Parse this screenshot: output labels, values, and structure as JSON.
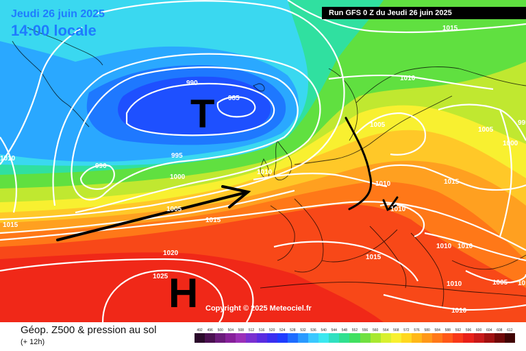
{
  "header": {
    "date_text": "Jeudi 26 juin 2025",
    "time_text": "14:00 locale",
    "run_text": "Run GFS 0 Z du Jeudi 26 juin 2025"
  },
  "map": {
    "low_symbol": "T",
    "high_symbol": "H",
    "copyright": "Copyright © 2025 Meteociel.fr",
    "isobar_labels": {
      "i990_a": "990",
      "i985": "985",
      "i990_b": "990",
      "i995": "995",
      "i1000": "1000",
      "i1005_w": "1005",
      "i1010_w": "1010",
      "i1015_w": "1015",
      "i1020": "1020",
      "i1025": "1025",
      "i1010_ne": "1010",
      "i1015_ne": "1015",
      "i1005_c": "1005",
      "i1005_e": "1005",
      "i1000_e": "1000",
      "i995_e": "995",
      "i1010_c": "1010",
      "i1010_d": "1010",
      "i1015_c": "1015",
      "i1010_gr": "1010",
      "i1015_s": "1015",
      "i1010_se1": "1010",
      "i1010_se2": "1010",
      "i1010_se3": "1010",
      "i1005_se": "1005",
      "i1010_sse": "1010",
      "i1015_ea": "1015",
      "i1010_ee": "1010"
    }
  },
  "footer": {
    "title": "Géop. Z500 & pression au sol",
    "step": "(+ 12h)"
  },
  "legend": [
    {
      "label": "492",
      "color": "#2a0a2a"
    },
    {
      "label": "496",
      "color": "#4a1050"
    },
    {
      "label": "500",
      "color": "#6a1a7a"
    },
    {
      "label": "504",
      "color": "#86209a"
    },
    {
      "label": "508",
      "color": "#9a30b8"
    },
    {
      "label": "512",
      "color": "#7a30d0"
    },
    {
      "label": "516",
      "color": "#5a2ce0"
    },
    {
      "label": "520",
      "color": "#3a2ef0"
    },
    {
      "label": "524",
      "color": "#1e3cff"
    },
    {
      "label": "528",
      "color": "#1e6cff"
    },
    {
      "label": "532",
      "color": "#2a9aff"
    },
    {
      "label": "536",
      "color": "#3ac8ff"
    },
    {
      "label": "540",
      "color": "#3ae8f0"
    },
    {
      "label": "544",
      "color": "#30e0c0"
    },
    {
      "label": "548",
      "color": "#30e090"
    },
    {
      "label": "552",
      "color": "#40e060"
    },
    {
      "label": "556",
      "color": "#70e040"
    },
    {
      "label": "560",
      "color": "#a8e830"
    },
    {
      "label": "564",
      "color": "#d8f030"
    },
    {
      "label": "568",
      "color": "#f8f030"
    },
    {
      "label": "572",
      "color": "#ffd820"
    },
    {
      "label": "576",
      "color": "#ffb818"
    },
    {
      "label": "580",
      "color": "#ff9818"
    },
    {
      "label": "584",
      "color": "#ff7818"
    },
    {
      "label": "588",
      "color": "#ff5818"
    },
    {
      "label": "592",
      "color": "#f83818"
    },
    {
      "label": "596",
      "color": "#e82018"
    },
    {
      "label": "600",
      "color": "#c81818"
    },
    {
      "label": "604",
      "color": "#a01010"
    },
    {
      "label": "608",
      "color": "#700808"
    },
    {
      "label": "612",
      "color": "#400404"
    }
  ]
}
